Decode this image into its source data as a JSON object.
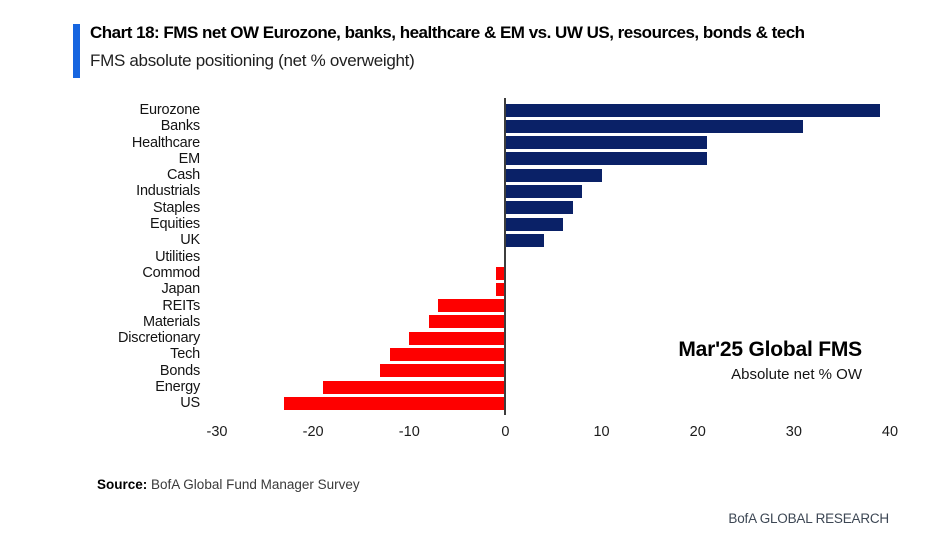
{
  "header": {
    "title": "Chart 18: FMS net OW Eurozone, banks, healthcare & EM vs. UW US, resources, bonds & tech",
    "subtitle": "FMS absolute positioning (net % overweight)",
    "accent_color": "#1665e0"
  },
  "chart_data": {
    "type": "bar",
    "orientation": "horizontal",
    "title": "Chart 18: FMS net OW Eurozone, banks, healthcare & EM vs. UW US, resources, bonds & tech",
    "subtitle": "FMS absolute positioning (net % overweight)",
    "categories": [
      "Eurozone",
      "Banks",
      "Healthcare",
      "EM",
      "Cash",
      "Industrials",
      "Staples",
      "Equities",
      "UK",
      "Utilities",
      "Commod",
      "Japan",
      "REITs",
      "Materials",
      "Discretionary",
      "Tech",
      "Bonds",
      "Energy",
      "US"
    ],
    "values": [
      39,
      31,
      21,
      21,
      10,
      8,
      7,
      6,
      4,
      0,
      -1,
      -1,
      -7,
      -8,
      -10,
      -12,
      -13,
      -19,
      -23
    ],
    "xlabel": "",
    "ylabel": "",
    "xlim": [
      -30,
      40
    ],
    "x_ticks": [
      -30,
      -20,
      -10,
      0,
      10,
      20,
      30,
      40
    ],
    "grid": false,
    "legend_position": "none",
    "positive_color": "#0a2167",
    "negative_color": "#fe0000",
    "axis_line_color": "#3d3d3d",
    "annotation": {
      "title": "Mar'25 Global FMS",
      "subtitle": "Absolute net % OW"
    }
  },
  "footer": {
    "source_label": "Source:",
    "source_text": "BofA Global Fund Manager Survey",
    "brand": "BofA GLOBAL RESEARCH"
  }
}
